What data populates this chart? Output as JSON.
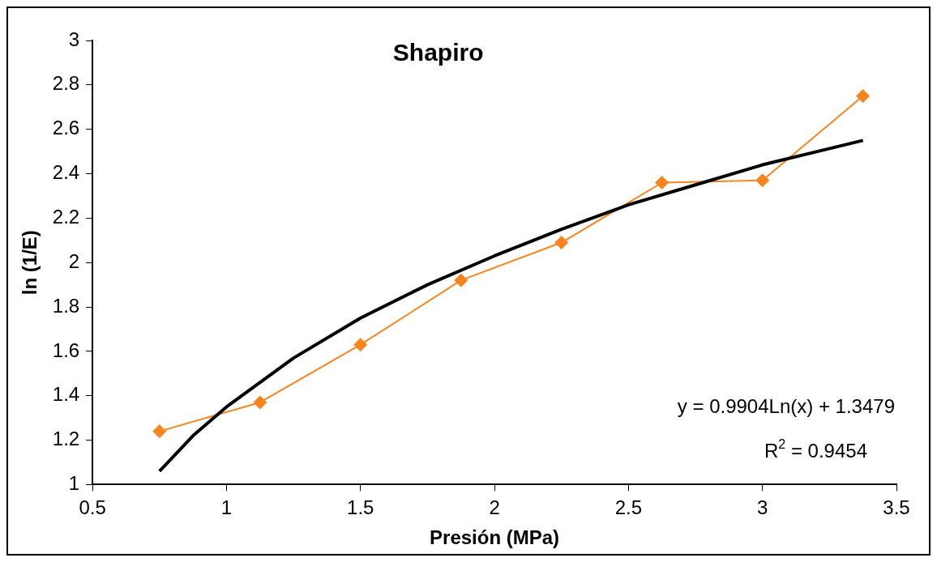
{
  "chart_data": {
    "type": "line",
    "title": "Shapiro",
    "xlabel": "Presión (MPa)",
    "ylabel": "ln (1/E)",
    "series": [
      {
        "color": "#f7841e",
        "x": [
          0.75,
          1.125,
          1.5,
          1.875,
          2.25,
          2.625,
          3.0,
          3.375
        ],
        "values": [
          1.24,
          1.37,
          1.63,
          1.92,
          2.09,
          2.36,
          2.37,
          2.75
        ]
      },
      {
        "type": "line",
        "marker": "none",
        "color": "#000000",
        "x": [
          0.75,
          0.875,
          1,
          1.25,
          1.5,
          1.75,
          2,
          2.25,
          2.5,
          2.75,
          3,
          3.375
        ],
        "values": [
          1.06,
          1.22,
          1.35,
          1.57,
          1.75,
          1.9,
          2.03,
          2.15,
          2.26,
          2.35,
          2.44,
          2.55
        ]
      }
    ],
    "xlim": [
      0.5,
      3.5
    ],
    "xticks": [
      0.5,
      1,
      1.5,
      2,
      2.5,
      3,
      3.5
    ],
    "ylim": [
      1,
      3
    ],
    "yticks": [
      1,
      1.2,
      1.4,
      1.6,
      1.8,
      2,
      2.2,
      2.4,
      2.6,
      2.8,
      3
    ],
    "grid": false,
    "legend": false,
    "marker": "diamond",
    "line_style": "solid",
    "annotations": [
      "y = 0.9904Ln(x) + 1.3479",
      "R$^{2}$ = 0.9454"
    ]
  }
}
